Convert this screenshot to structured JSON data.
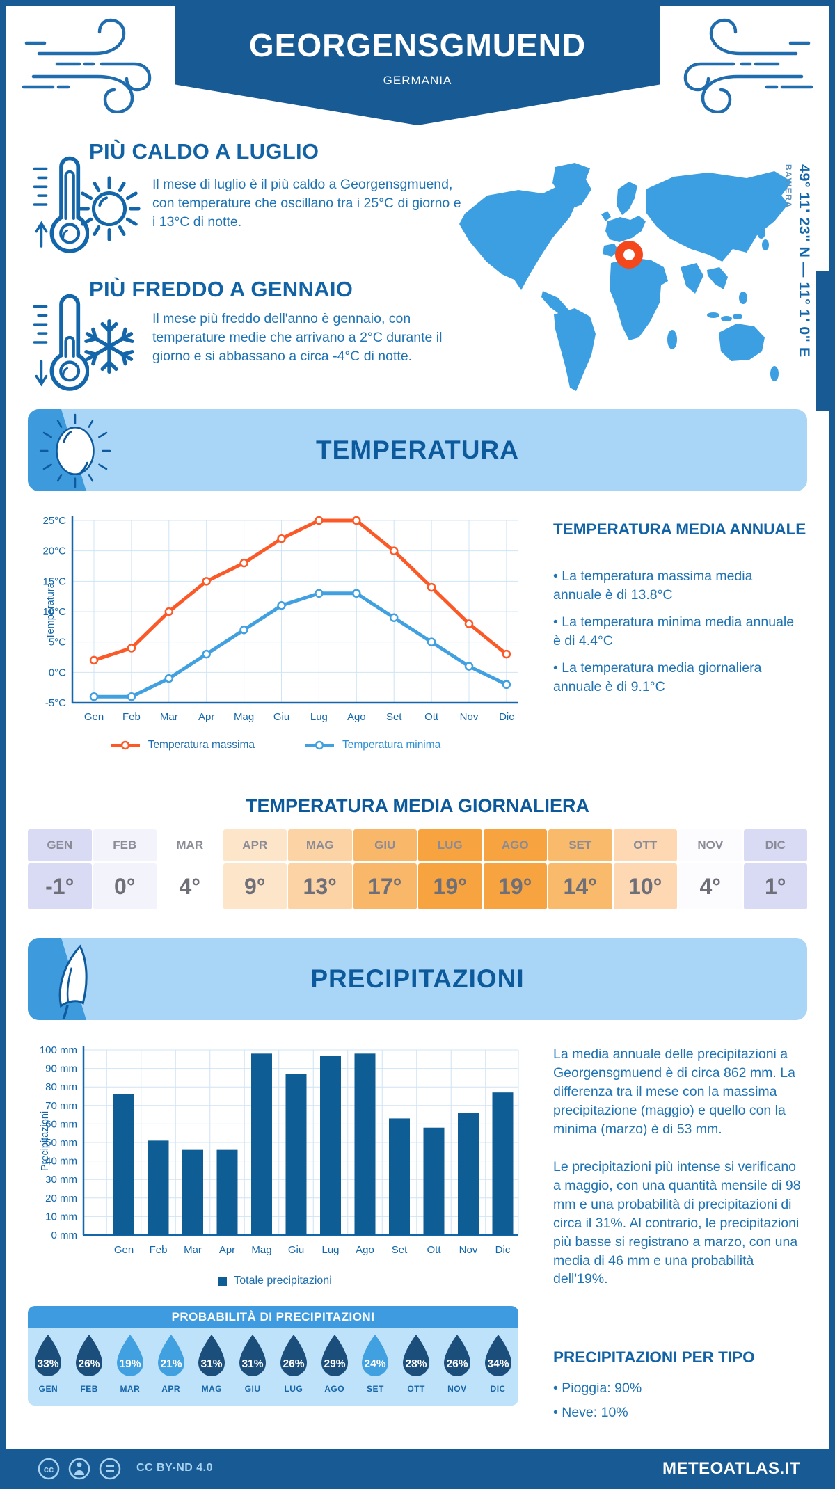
{
  "meta": {
    "location": "GEORGENSGMUEND",
    "country": "GERMANIA",
    "coordinates": "49° 11' 23\" N — 11° 1' 0\" E",
    "region": "BAVIERA"
  },
  "colors": {
    "brand_dark_blue": "#175a94",
    "heading_blue": "#1163a6",
    "body_blue": "#1e73b4",
    "banner_light": "#a9d5f6",
    "banner_chip": "#3d9bdd",
    "map_blue": "#3c9fe1",
    "marker_orange": "#f4481c",
    "grid": "#cfe4f4",
    "axis": "#1266a9",
    "bar_blue": "#0e5d95",
    "droplet_dark": "#1b4e7b",
    "droplet_light": "#41a0e0"
  },
  "highlights": {
    "hot": {
      "title": "PIÙ CALDO A LUGLIO",
      "text": "Il mese di luglio è il più caldo a Georgensgmuend, con temperature che oscillano tra i 25°C di giorno e i 13°C di notte."
    },
    "cold": {
      "title": "PIÙ FREDDO A GENNAIO",
      "text": "Il mese più freddo dell'anno è gennaio, con temperature medie che arrivano a 2°C durante il giorno e si abbassano a circa -4°C di notte."
    }
  },
  "temperature_section": {
    "banner_title": "TEMPERATURA",
    "annual": {
      "title": "TEMPERATURA MEDIA ANNUALE",
      "bullets": [
        "• La temperatura massima media annuale è di 13.8°C",
        "• La temperatura minima media annuale è di 4.4°C",
        "• La temperatura media giornaliera annuale è di 9.1°C"
      ]
    },
    "daily": {
      "title": "TEMPERATURA MEDIA GIORNALIERA",
      "months": [
        "GEN",
        "FEB",
        "MAR",
        "APR",
        "MAG",
        "GIU",
        "LUG",
        "AGO",
        "SET",
        "OTT",
        "NOV",
        "DIC"
      ],
      "values": [
        "-1°",
        "0°",
        "4°",
        "9°",
        "13°",
        "17°",
        "19°",
        "19°",
        "14°",
        "10°",
        "4°",
        "1°"
      ],
      "cell_colors": [
        "#d9daf3",
        "#f3f3fb",
        "#ffffff",
        "#fde5c9",
        "#fcd3a4",
        "#f9b869",
        "#f7a440",
        "#f7a440",
        "#f9ba6c",
        "#fdd8b2",
        "#fcfcfe",
        "#d9daf3"
      ]
    }
  },
  "precipitation_section": {
    "banner_title": "PRECIPITAZIONI",
    "paragraphs": [
      "La media annuale delle precipitazioni a Georgensgmuend è di circa 862 mm. La differenza tra il mese con la massima precipitazione (maggio) e quello con la minima (marzo) è di 53 mm.",
      "Le precipitazioni più intense si verificano a maggio, con una quantità mensile di 98 mm e una probabilità di precipitazioni di circa il 31%. Al contrario, le precipitazioni più basse si registrano a marzo, con una media di 46 mm e una probabilità dell'19%."
    ],
    "probability": {
      "title": "PROBABILITÀ DI PRECIPITAZIONI",
      "months": [
        "GEN",
        "FEB",
        "MAR",
        "APR",
        "MAG",
        "GIU",
        "LUG",
        "AGO",
        "SET",
        "OTT",
        "NOV",
        "DIC"
      ],
      "values": [
        33,
        26,
        19,
        21,
        31,
        31,
        26,
        29,
        24,
        28,
        26,
        34
      ],
      "light_threshold": 25
    },
    "by_type": {
      "title": "PRECIPITAZIONI PER TIPO",
      "items": [
        "• Pioggia: 90%",
        "• Neve: 10%"
      ]
    }
  },
  "footer": {
    "license": "CC BY-ND 4.0",
    "site": "METEOATLAS.IT"
  },
  "chart_data": [
    {
      "type": "line",
      "categories": [
        "Gen",
        "Feb",
        "Mar",
        "Apr",
        "Mag",
        "Giu",
        "Lug",
        "Ago",
        "Set",
        "Ott",
        "Nov",
        "Dic"
      ],
      "series": [
        {
          "name": "Temperatura massima",
          "color": "#fb5a28",
          "label_color": "#1a6cae",
          "values": [
            2,
            4,
            10,
            15,
            18,
            22,
            25,
            25,
            20,
            14,
            8,
            3
          ]
        },
        {
          "name": "Temperatura minima",
          "color": "#41a0e0",
          "label_color": "#2e90d5",
          "values": [
            -4,
            -4,
            -1,
            3,
            7,
            11,
            13,
            13,
            9,
            5,
            1,
            -2
          ]
        }
      ],
      "ylabel": "Temperatura",
      "ylim": [
        -5,
        25
      ],
      "ytick_step": 5,
      "ytick_suffix": "°C",
      "grid": true,
      "legend_position": "bottom"
    },
    {
      "type": "bar",
      "categories": [
        "Gen",
        "Feb",
        "Mar",
        "Apr",
        "Mag",
        "Giu",
        "Lug",
        "Ago",
        "Set",
        "Ott",
        "Nov",
        "Dic"
      ],
      "values": [
        76,
        51,
        46,
        46,
        98,
        87,
        97,
        98,
        63,
        58,
        66,
        77
      ],
      "legend": "Totale precipitazioni",
      "bar_color": "#0e5d95",
      "ylabel": "Precipitazioni",
      "ylim": [
        0,
        100
      ],
      "ytick_step": 10,
      "ytick_suffix": " mm",
      "grid": true,
      "legend_position": "bottom"
    }
  ]
}
